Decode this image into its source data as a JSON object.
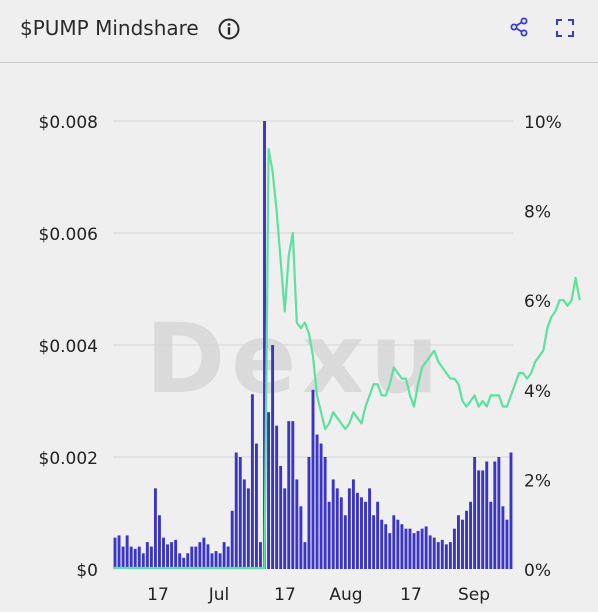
{
  "header": {
    "title": "$PUMP Mindshare",
    "icons": [
      "info-icon",
      "share-icon",
      "expand-icon"
    ]
  },
  "watermark": "Dexu",
  "colors": {
    "bars": "#3b35c4",
    "line": "#5ee0a0",
    "accent": "#3a39c8",
    "background": "#efefef",
    "grid": "#d6d6d6"
  },
  "chart_data": {
    "type": "bar",
    "title": "$PUMP Mindshare",
    "x_tick_labels": [
      "17",
      "Jul",
      "17",
      "Aug",
      "17",
      "Sep"
    ],
    "y_left": {
      "ticks": [
        "$0",
        "$0.002",
        "$0.004",
        "$0.006",
        "$0.008"
      ],
      "range": [
        0,
        0.008
      ]
    },
    "y_right": {
      "ticks": [
        "0%",
        "2%",
        "4%",
        "6%",
        "8%",
        "10%"
      ],
      "range": [
        0,
        10
      ]
    },
    "grid": true,
    "series": [
      {
        "type": "bar",
        "axis": "right",
        "unit": "%",
        "values": [
          0.7,
          0.75,
          0.5,
          0.75,
          0.5,
          0.45,
          0.5,
          0.35,
          0.6,
          0.5,
          1.8,
          1.2,
          0.7,
          0.55,
          0.6,
          0.65,
          0.35,
          0.25,
          0.35,
          0.5,
          0.5,
          0.6,
          0.7,
          0.55,
          0.35,
          0.4,
          0.35,
          0.6,
          0.5,
          1.3,
          2.6,
          2.5,
          2.0,
          1.8,
          3.9,
          2.8,
          0.6,
          10.0,
          3.5,
          5.0,
          3.2,
          2.3,
          1.8,
          3.3,
          3.3,
          2.0,
          1.4,
          0.6,
          2.5,
          4.0,
          3.0,
          2.8,
          2.5,
          1.5,
          2.0,
          1.8,
          1.6,
          1.2,
          1.8,
          2.0,
          1.7,
          1.6,
          1.5,
          1.8,
          1.2,
          1.5,
          1.1,
          1.0,
          0.8,
          1.2,
          1.1,
          1.0,
          0.9,
          0.9,
          0.8,
          0.85,
          0.9,
          0.95,
          0.75,
          0.7,
          0.6,
          0.65,
          0.55,
          0.6,
          0.9,
          1.2,
          1.1,
          1.3,
          1.5,
          2.5,
          2.2,
          2.2,
          2.4,
          1.5,
          2.4,
          2.5,
          1.4,
          1.1,
          2.6
        ]
      },
      {
        "type": "line",
        "axis": "left",
        "unit": "$",
        "start_index": 37,
        "values": [
          0,
          0.0075,
          0.0071,
          0.0064,
          0.0055,
          0.0046,
          0.0056,
          0.006,
          0.0044,
          0.0043,
          0.0044,
          0.0042,
          0.0038,
          0.0031,
          0.0028,
          0.0025,
          0.0026,
          0.0028,
          0.0027,
          0.0026,
          0.0025,
          0.0026,
          0.0028,
          0.0027,
          0.0026,
          0.0029,
          0.0031,
          0.0033,
          0.0033,
          0.0031,
          0.0031,
          0.0033,
          0.0036,
          0.0035,
          0.0034,
          0.0034,
          0.0031,
          0.0029,
          0.0033,
          0.0036,
          0.0037,
          0.0038,
          0.0039,
          0.0037,
          0.0036,
          0.0035,
          0.0034,
          0.0034,
          0.0033,
          0.003,
          0.0029,
          0.003,
          0.0031,
          0.0029,
          0.003,
          0.0029,
          0.0031,
          0.0031,
          0.0031,
          0.0029,
          0.0029,
          0.0031,
          0.0033,
          0.0035,
          0.0035,
          0.0034,
          0.0035,
          0.0037,
          0.0038,
          0.0039,
          0.0043,
          0.0045,
          0.0046,
          0.0048,
          0.0048,
          0.0047,
          0.0048,
          0.0052,
          0.0048
        ]
      }
    ]
  }
}
